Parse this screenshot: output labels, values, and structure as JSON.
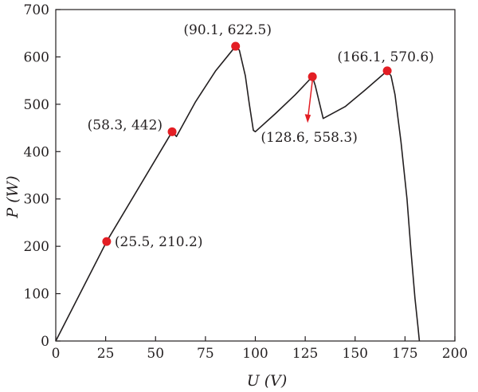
{
  "chart_data": {
    "type": "line",
    "xlabel": "U (V)",
    "ylabel": "P (W)",
    "xlim": [
      0,
      200
    ],
    "ylim": [
      0,
      700
    ],
    "xticks": [
      0,
      25,
      50,
      75,
      100,
      125,
      150,
      175,
      200
    ],
    "yticks": [
      0,
      100,
      200,
      300,
      400,
      500,
      600,
      700
    ],
    "grid": false,
    "series": [
      {
        "x": [
          0,
          25.5,
          58.3,
          60.5,
          70,
          80,
          90.1,
          92,
          95,
          97,
          99,
          100,
          110,
          120,
          128.6,
          130,
          132,
          134,
          145,
          155,
          166.1,
          168,
          170,
          173,
          176,
          178,
          180,
          181.5,
          182.2
        ],
        "y": [
          0,
          210.2,
          442,
          432,
          505,
          570,
          622.5,
          614,
          560,
          500,
          445,
          442,
          480,
          520,
          558.3,
          540,
          505,
          470,
          495,
          530,
          570.6,
          560,
          520,
          420,
          300,
          190,
          90,
          30,
          0
        ]
      }
    ],
    "points": [
      {
        "x": 25.5,
        "y": 210.2,
        "label": "(25.5, 210.2)"
      },
      {
        "x": 58.3,
        "y": 442,
        "label": "(58.3, 442)"
      },
      {
        "x": 90.1,
        "y": 622.5,
        "label": "(90.1, 622.5)"
      },
      {
        "x": 128.6,
        "y": 558.3,
        "label": "(128.6, 558.3)"
      },
      {
        "x": 166.1,
        "y": 570.6,
        "label": "(166.1, 570.6)"
      }
    ],
    "colors": {
      "line": "#231f20",
      "marker": "#e31e24",
      "arrow": "#e31e24"
    }
  }
}
